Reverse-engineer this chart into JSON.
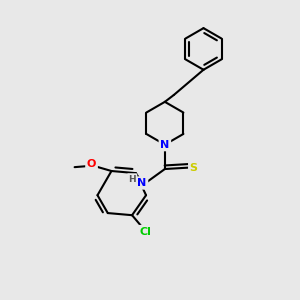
{
  "background_color": "#e8e8e8",
  "bond_color": "#000000",
  "bond_width": 1.5,
  "atom_colors": {
    "N": "#0000ff",
    "O": "#ff0000",
    "S": "#cccc00",
    "Cl": "#00cc00",
    "H": "#555555",
    "C": "#000000"
  },
  "font_size": 8,
  "figsize": [
    3.0,
    3.0
  ],
  "dpi": 100
}
